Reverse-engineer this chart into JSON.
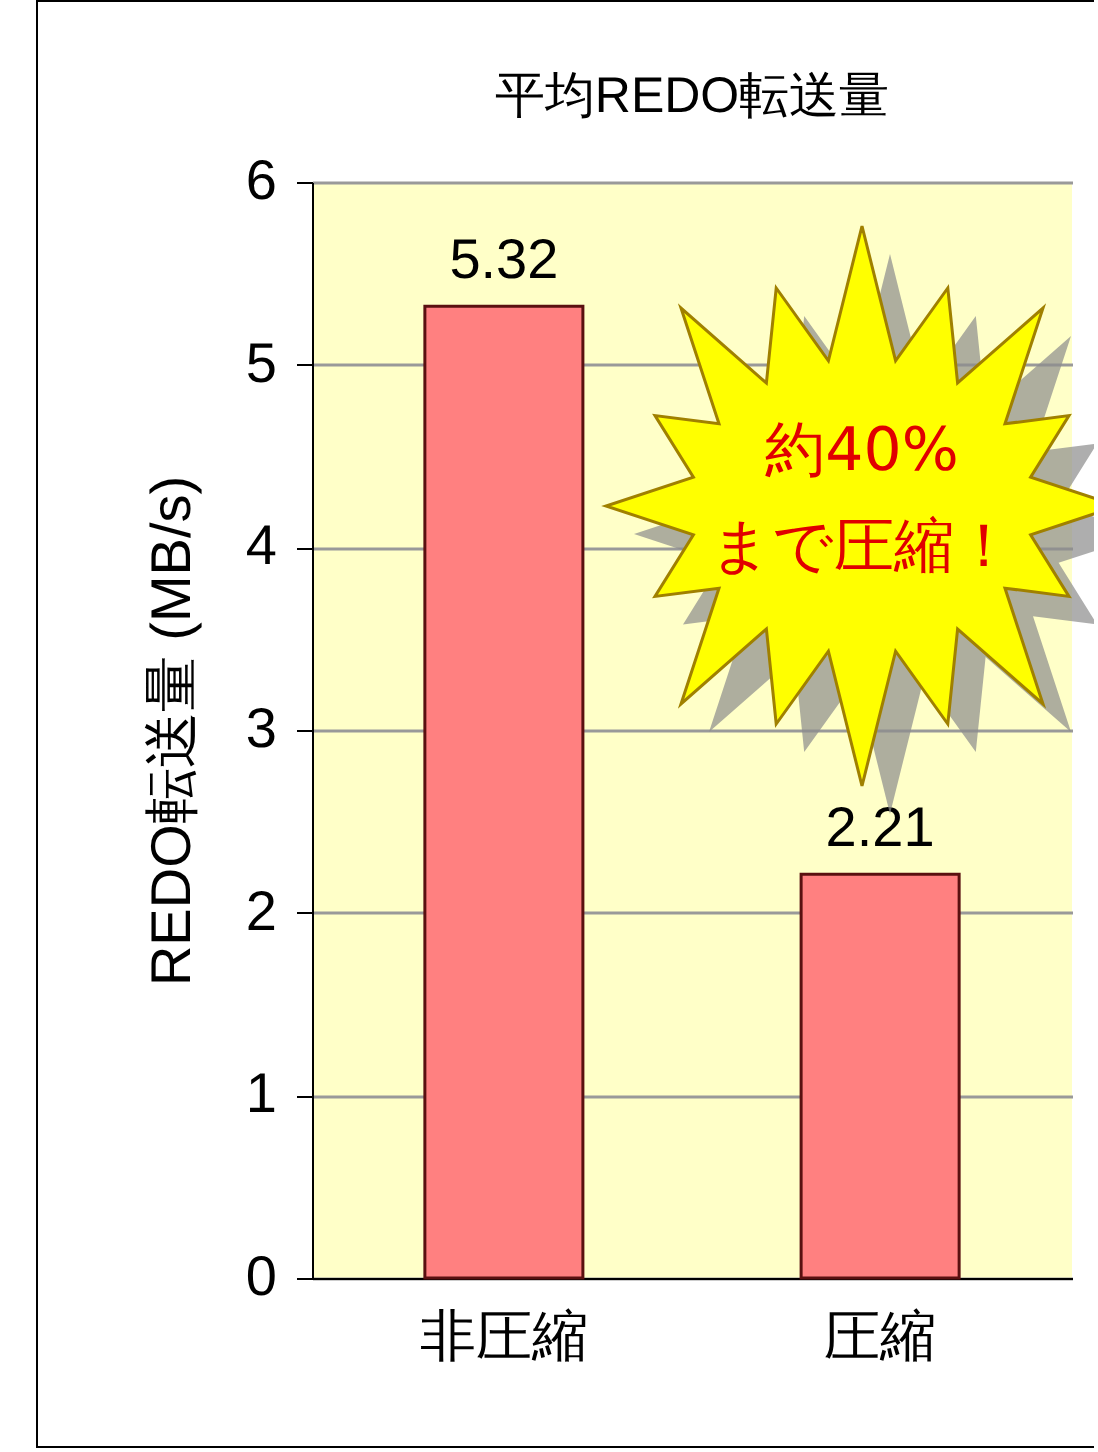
{
  "chart_data": {
    "type": "bar",
    "title": "平均REDO転送量",
    "ylabel": "REDO転送量 (MB/s)",
    "categories": [
      "非圧縮",
      "圧縮"
    ],
    "values": [
      5.32,
      2.21
    ],
    "color": "#ff8080",
    "ylim": [
      0,
      6
    ],
    "yticks": [
      0,
      1,
      2,
      3,
      4,
      5,
      6
    ],
    "grid": "y",
    "data_labels": true,
    "annotations": [
      "約40%\nまで圧縮！"
    ]
  }
}
